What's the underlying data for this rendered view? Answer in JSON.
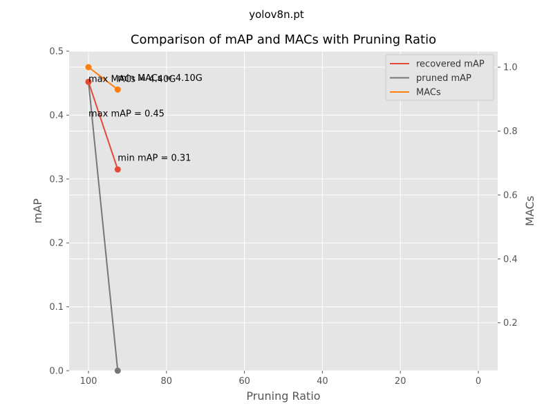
{
  "suptitle": "yolov8n.pt",
  "chart_data": {
    "type": "line",
    "title": "Comparison of mAP and MACs with Pruning Ratio",
    "xlabel": "Pruning Ratio",
    "ylabel": "mAP",
    "ylabel_right": "MACs",
    "xlim": [
      100,
      0
    ],
    "x_ticks": [
      "100",
      "80",
      "60",
      "40",
      "20",
      "0"
    ],
    "ylim": [
      0,
      0.5
    ],
    "y_ticks": [
      "0.0",
      "0.1",
      "0.2",
      "0.3",
      "0.4",
      "0.5"
    ],
    "y2lim": [
      0.05,
      1.05
    ],
    "y2_ticks": [
      "0.2",
      "0.4",
      "0.6",
      "0.8",
      "1.0"
    ],
    "grid": true,
    "legend_position": "top-right",
    "series": [
      {
        "name": "recovered mAP",
        "axis": "left",
        "color": "#e24a33",
        "x": [
          100,
          92.5
        ],
        "y": [
          0.452,
          0.315
        ]
      },
      {
        "name": "pruned mAP",
        "axis": "left",
        "color": "#777777",
        "x": [
          100,
          92.5
        ],
        "y": [
          0.452,
          0.0
        ]
      },
      {
        "name": "MACs",
        "axis": "right",
        "color": "#ff7f0e",
        "x": [
          100,
          92.5
        ],
        "y": [
          1.0,
          0.93
        ]
      }
    ],
    "annotations": [
      {
        "text": "max mAP = 0.45",
        "axis": "left",
        "x": 100,
        "y": 0.402
      },
      {
        "text": "min mAP = 0.31",
        "axis": "left",
        "x": 92.5,
        "y": 0.333
      },
      {
        "text": "max MACs = 4.40G",
        "axis": "right",
        "x": 100,
        "y": 0.962
      },
      {
        "text": "min MACs = 4.10G",
        "axis": "right",
        "x": 92.5,
        "y": 0.966
      }
    ]
  }
}
